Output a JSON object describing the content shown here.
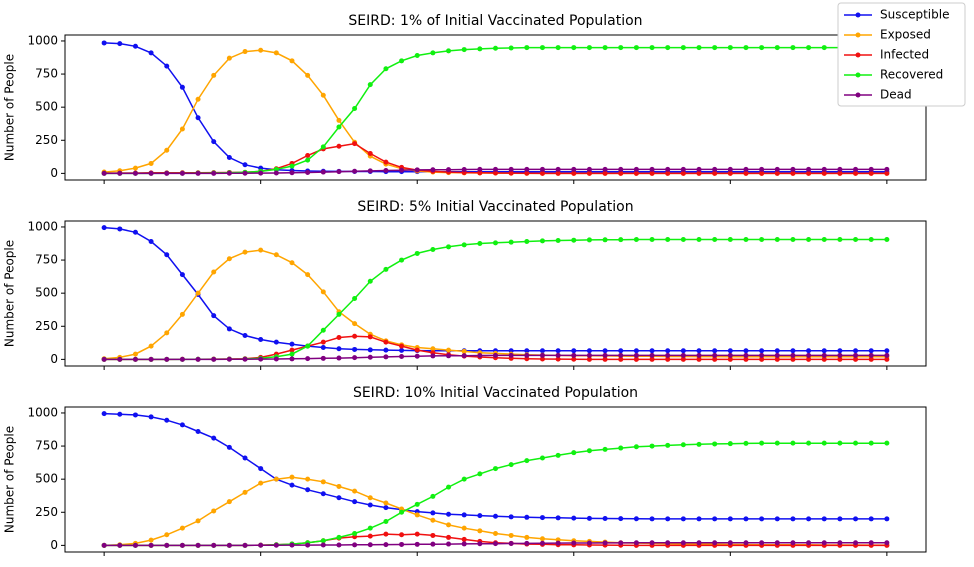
{
  "chart_data": [
    {
      "type": "line",
      "title": "SEIRD: 1% of Initial Vaccinated Population",
      "ylabel": "Number of People",
      "ylim": [
        -50,
        1045
      ],
      "yticks": [
        0,
        250,
        500,
        750,
        1000
      ],
      "legend": "upper right",
      "series": [
        {
          "name": "Susceptible",
          "color": "#1010f0",
          "values": [
            985,
            980,
            960,
            910,
            810,
            650,
            420,
            240,
            120,
            65,
            40,
            28,
            22,
            18,
            16,
            15,
            14,
            14,
            13,
            13,
            13,
            13,
            12,
            12,
            12,
            12,
            12,
            12,
            12,
            12,
            12,
            12,
            12,
            12,
            12,
            12,
            12,
            12,
            12,
            12,
            12,
            12,
            12,
            12,
            12,
            12,
            12,
            12,
            12,
            12,
            12
          ]
        },
        {
          "name": "Exposed",
          "color": "#ffa500",
          "values": [
            10,
            20,
            40,
            75,
            175,
            335,
            560,
            740,
            870,
            920,
            930,
            910,
            850,
            740,
            590,
            400,
            235,
            130,
            70,
            35,
            18,
            10,
            6,
            4,
            3,
            2,
            1,
            0,
            0,
            0,
            0,
            0,
            0,
            0,
            0,
            0,
            0,
            0,
            0,
            0,
            0,
            0,
            0,
            0,
            0,
            0,
            0,
            0,
            0,
            0,
            0
          ]
        },
        {
          "name": "Infected",
          "color": "#f01010",
          "values": [
            2,
            3,
            3,
            4,
            4,
            5,
            5,
            6,
            7,
            8,
            15,
            35,
            75,
            135,
            185,
            205,
            225,
            150,
            85,
            45,
            25,
            15,
            10,
            6,
            4,
            3,
            2,
            1,
            0,
            0,
            0,
            0,
            0,
            0,
            0,
            0,
            0,
            0,
            0,
            0,
            0,
            0,
            0,
            0,
            0,
            0,
            0,
            0,
            0,
            0,
            0
          ]
        },
        {
          "name": "Recovered",
          "color": "#10f010",
          "values": [
            0,
            0,
            0,
            0,
            1,
            1,
            2,
            3,
            5,
            8,
            15,
            30,
            55,
            100,
            200,
            350,
            490,
            670,
            790,
            850,
            890,
            910,
            925,
            935,
            940,
            945,
            947,
            950,
            950,
            950,
            950,
            950,
            950,
            950,
            950,
            950,
            950,
            950,
            950,
            950,
            950,
            950,
            950,
            950,
            950,
            950,
            950,
            950,
            950,
            950,
            950
          ]
        },
        {
          "name": "Dead",
          "color": "#800080",
          "values": [
            0,
            0,
            0,
            0,
            0,
            0,
            0,
            0,
            1,
            1,
            2,
            3,
            5,
            7,
            10,
            13,
            16,
            19,
            22,
            24,
            26,
            27,
            28,
            29,
            30,
            30,
            30,
            30,
            30,
            30,
            30,
            30,
            30,
            30,
            30,
            30,
            30,
            30,
            30,
            30,
            30,
            30,
            30,
            30,
            30,
            30,
            30,
            30,
            30,
            30,
            30
          ]
        }
      ]
    },
    {
      "type": "line",
      "title": "SEIRD: 5% Initial Vaccinated Population",
      "ylabel": "Number of People",
      "ylim": [
        -50,
        1045
      ],
      "yticks": [
        0,
        250,
        500,
        750,
        1000
      ],
      "series": [
        {
          "color": "#1010f0",
          "values": [
            995,
            985,
            960,
            890,
            790,
            640,
            490,
            330,
            230,
            180,
            150,
            130,
            115,
            100,
            90,
            80,
            75,
            72,
            70,
            68,
            66,
            65,
            65,
            65,
            65,
            65,
            65,
            65,
            65,
            65,
            65,
            65,
            65,
            65,
            65,
            65,
            65,
            65,
            65,
            65,
            65,
            65,
            65,
            65,
            65,
            65,
            65,
            65,
            65,
            65,
            65
          ]
        },
        {
          "color": "#ffa500",
          "values": [
            5,
            15,
            40,
            100,
            200,
            340,
            500,
            660,
            760,
            810,
            825,
            790,
            730,
            640,
            510,
            360,
            270,
            190,
            140,
            110,
            90,
            80,
            70,
            60,
            50,
            45,
            40,
            35,
            32,
            30,
            28,
            27,
            26,
            25,
            24,
            23,
            22,
            22,
            21,
            21,
            20,
            20,
            20,
            20,
            20,
            20,
            20,
            20,
            20,
            20,
            20
          ]
        },
        {
          "color": "#f01010",
          "values": [
            0,
            0,
            0,
            0,
            0,
            1,
            1,
            2,
            3,
            5,
            15,
            40,
            70,
            100,
            130,
            165,
            175,
            170,
            130,
            100,
            70,
            50,
            35,
            25,
            18,
            12,
            8,
            5,
            3,
            2,
            1,
            0,
            0,
            0,
            0,
            0,
            0,
            0,
            0,
            0,
            0,
            0,
            0,
            0,
            0,
            0,
            0,
            0,
            0,
            0,
            0
          ]
        },
        {
          "color": "#10f010",
          "values": [
            0,
            0,
            0,
            0,
            0,
            0,
            1,
            1,
            2,
            3,
            8,
            20,
            40,
            100,
            220,
            340,
            460,
            590,
            680,
            750,
            800,
            830,
            850,
            865,
            875,
            880,
            885,
            890,
            895,
            898,
            900,
            902,
            903,
            904,
            905,
            905,
            905,
            905,
            905,
            905,
            905,
            905,
            905,
            905,
            905,
            905,
            905,
            905,
            905,
            905,
            905
          ]
        },
        {
          "color": "#800080",
          "values": [
            0,
            0,
            0,
            0,
            0,
            0,
            0,
            0,
            1,
            1,
            2,
            3,
            4,
            6,
            8,
            10,
            13,
            16,
            19,
            22,
            24,
            26,
            27,
            28,
            29,
            30,
            30,
            30,
            30,
            30,
            30,
            30,
            30,
            30,
            30,
            30,
            30,
            30,
            30,
            30,
            30,
            30,
            30,
            30,
            30,
            30,
            30,
            30,
            30,
            30,
            30
          ]
        }
      ]
    },
    {
      "type": "line",
      "title": "SEIRD: 10% Initial Vaccinated Population",
      "ylabel": "Number of People",
      "ylim": [
        -50,
        1045
      ],
      "yticks": [
        0,
        250,
        500,
        750,
        1000
      ],
      "series": [
        {
          "color": "#1010f0",
          "values": [
            995,
            990,
            985,
            970,
            945,
            910,
            860,
            810,
            740,
            660,
            580,
            500,
            455,
            420,
            390,
            360,
            330,
            305,
            285,
            270,
            255,
            245,
            235,
            230,
            225,
            220,
            215,
            212,
            210,
            208,
            206,
            204,
            203,
            202,
            201,
            200,
            200,
            200,
            200,
            200,
            200,
            200,
            200,
            200,
            200,
            200,
            200,
            200,
            200,
            200,
            200
          ]
        },
        {
          "color": "#ffa500",
          "values": [
            0,
            5,
            15,
            40,
            80,
            130,
            185,
            260,
            330,
            400,
            470,
            500,
            515,
            500,
            480,
            445,
            410,
            360,
            320,
            275,
            230,
            190,
            155,
            130,
            110,
            90,
            75,
            60,
            50,
            42,
            35,
            30,
            25,
            20,
            17,
            15,
            12,
            10,
            9,
            8,
            7,
            6,
            5,
            5,
            4,
            4,
            3,
            3,
            3,
            2,
            2
          ]
        },
        {
          "color": "#f01010",
          "values": [
            0,
            0,
            0,
            0,
            0,
            0,
            0,
            0,
            0,
            0,
            2,
            5,
            10,
            20,
            35,
            55,
            65,
            70,
            85,
            80,
            85,
            75,
            60,
            45,
            30,
            20,
            15,
            10,
            8,
            5,
            4,
            3,
            2,
            1,
            0,
            0,
            0,
            0,
            0,
            0,
            0,
            0,
            0,
            0,
            0,
            0,
            0,
            0,
            0,
            0,
            0
          ]
        },
        {
          "color": "#10f010",
          "values": [
            0,
            0,
            0,
            0,
            0,
            0,
            0,
            0,
            0,
            0,
            1,
            5,
            10,
            20,
            35,
            60,
            90,
            130,
            180,
            250,
            310,
            370,
            440,
            500,
            540,
            580,
            610,
            640,
            660,
            680,
            700,
            715,
            725,
            735,
            745,
            750,
            755,
            760,
            763,
            766,
            768,
            770,
            772,
            772,
            772,
            772,
            772,
            772,
            772,
            772,
            772
          ]
        },
        {
          "color": "#800080",
          "values": [
            0,
            0,
            0,
            0,
            0,
            0,
            0,
            0,
            0,
            0,
            1,
            1,
            2,
            2,
            3,
            3,
            4,
            5,
            6,
            7,
            8,
            9,
            10,
            11,
            12,
            13,
            14,
            15,
            16,
            17,
            18,
            18,
            19,
            19,
            20,
            20,
            20,
            20,
            20,
            20,
            20,
            20,
            20,
            20,
            20,
            20,
            20,
            20,
            20,
            20,
            20
          ]
        }
      ]
    }
  ]
}
